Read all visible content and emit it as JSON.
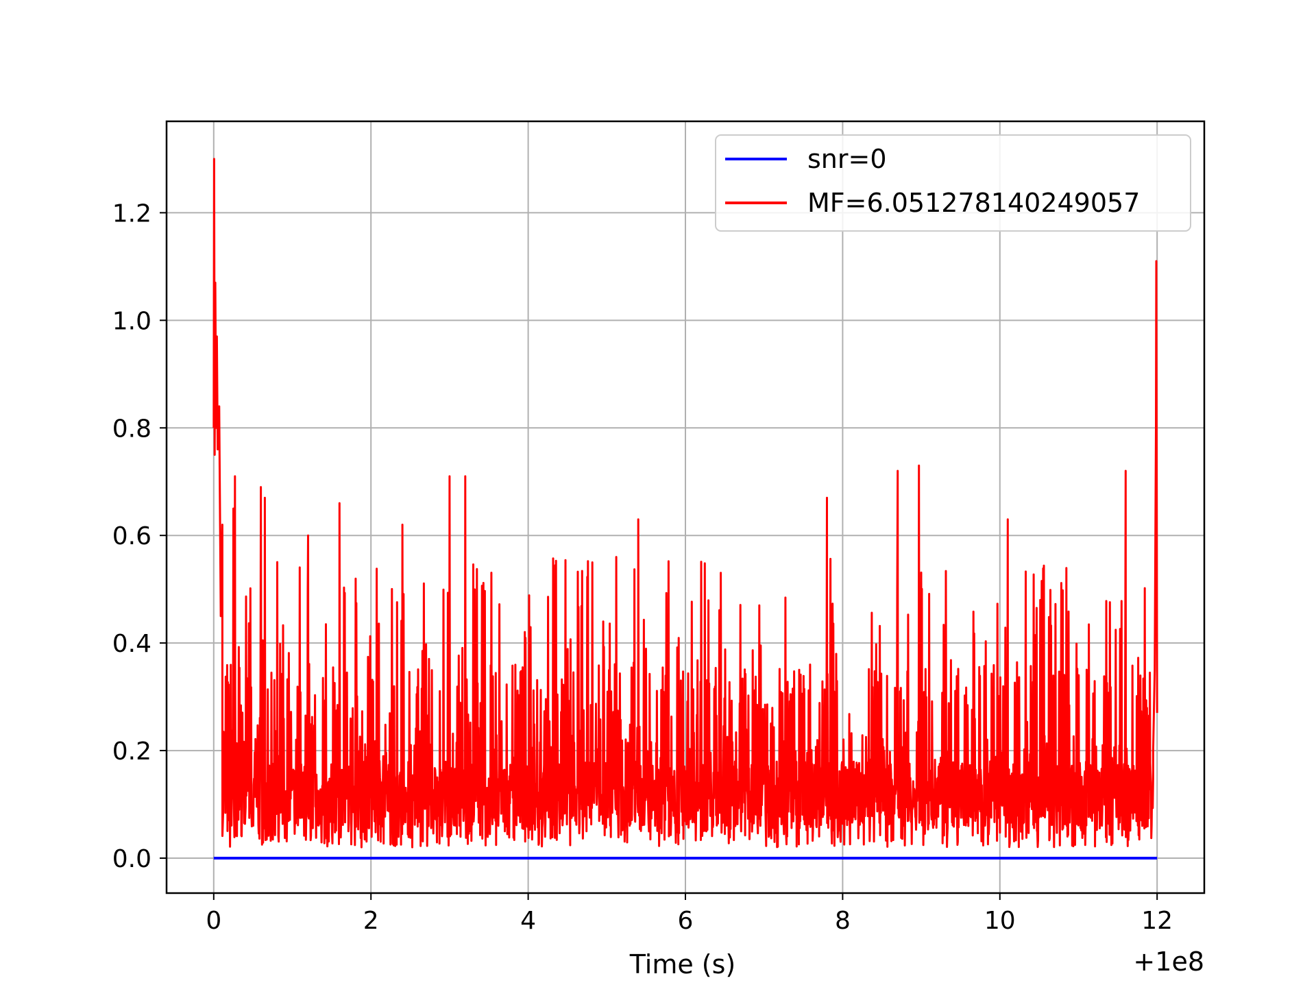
{
  "chart_data": {
    "type": "line",
    "xlabel": "Time (s)",
    "ylabel": "",
    "title": "",
    "x_offset_label": "+1e8",
    "xlim": [
      -0.6,
      12.6
    ],
    "ylim": [
      -0.065,
      1.37
    ],
    "x_ticks": [
      0,
      2,
      4,
      6,
      8,
      10,
      12
    ],
    "x_tick_labels": [
      "0",
      "2",
      "4",
      "6",
      "8",
      "10",
      "12"
    ],
    "y_ticks": [
      0.0,
      0.2,
      0.4,
      0.6,
      0.8,
      1.0,
      1.2
    ],
    "y_tick_labels": [
      "0.0",
      "0.2",
      "0.4",
      "0.6",
      "0.8",
      "1.0",
      "1.2"
    ],
    "grid": true,
    "legend_position": "upper right",
    "series": [
      {
        "name": "snr=0",
        "color": "#0000ff",
        "x": [
          0,
          12
        ],
        "y": [
          0,
          0
        ]
      },
      {
        "name": "MF=6.051278140249057",
        "color": "#ff0000",
        "x_range": [
          0,
          12
        ],
        "peaks": [
          {
            "x": 0.0,
            "y": 1.01
          },
          {
            "x": 0.01,
            "y": 1.3
          },
          {
            "x": 0.03,
            "y": 1.08
          },
          {
            "x": 0.06,
            "y": 0.97
          },
          {
            "x": 0.08,
            "y": 0.84
          },
          {
            "x": 0.25,
            "y": 0.65
          },
          {
            "x": 0.27,
            "y": 0.71
          },
          {
            "x": 0.6,
            "y": 0.69
          },
          {
            "x": 0.65,
            "y": 0.67
          },
          {
            "x": 1.2,
            "y": 0.6
          },
          {
            "x": 1.6,
            "y": 0.66
          },
          {
            "x": 2.4,
            "y": 0.62
          },
          {
            "x": 3.0,
            "y": 0.71
          },
          {
            "x": 3.2,
            "y": 0.71
          },
          {
            "x": 5.4,
            "y": 0.63
          },
          {
            "x": 7.8,
            "y": 0.67
          },
          {
            "x": 8.7,
            "y": 0.72
          },
          {
            "x": 8.97,
            "y": 0.73
          },
          {
            "x": 10.1,
            "y": 0.63
          },
          {
            "x": 11.6,
            "y": 0.72
          },
          {
            "x": 11.99,
            "y": 1.11
          }
        ],
        "typical_range": [
          0.0,
          0.45
        ],
        "mean_level": 0.2
      }
    ]
  }
}
